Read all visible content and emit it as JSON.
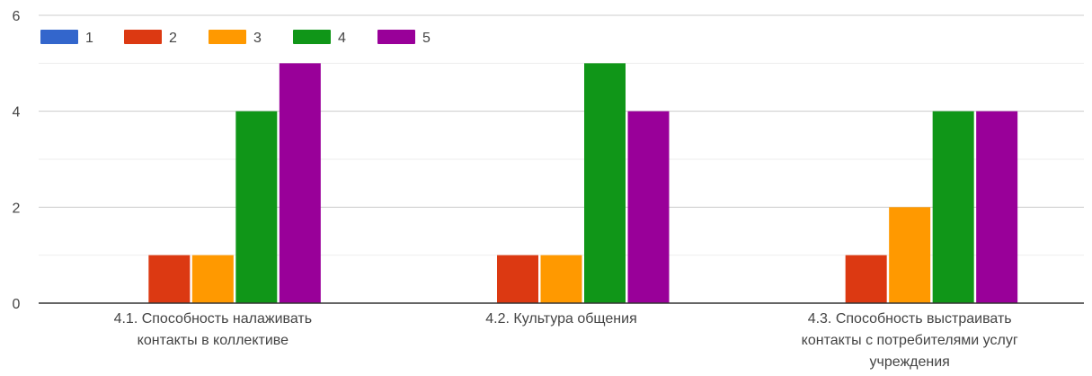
{
  "chart_data": {
    "type": "bar",
    "title": "",
    "xlabel": "",
    "ylabel": "",
    "ylim": [
      0,
      6
    ],
    "yticks": [
      0,
      2,
      4,
      6
    ],
    "grid": true,
    "legend_position": "top-left",
    "categories": [
      [
        "4.1. Способность налаживать",
        "контакты в коллективе"
      ],
      [
        "4.2. Культура общения"
      ],
      [
        "4.3. Способность выстраивать",
        "контакты с потребителями услуг",
        "учреждения"
      ]
    ],
    "series": [
      {
        "name": "1",
        "color": "#3366cc",
        "values": [
          0,
          0,
          0
        ]
      },
      {
        "name": "2",
        "color": "#dc3912",
        "values": [
          1,
          1,
          1
        ]
      },
      {
        "name": "3",
        "color": "#ff9900",
        "values": [
          1,
          1,
          2
        ]
      },
      {
        "name": "4",
        "color": "#109618",
        "values": [
          4,
          5,
          4
        ]
      },
      {
        "name": "5",
        "color": "#990099",
        "values": [
          5,
          4,
          4
        ]
      }
    ]
  }
}
